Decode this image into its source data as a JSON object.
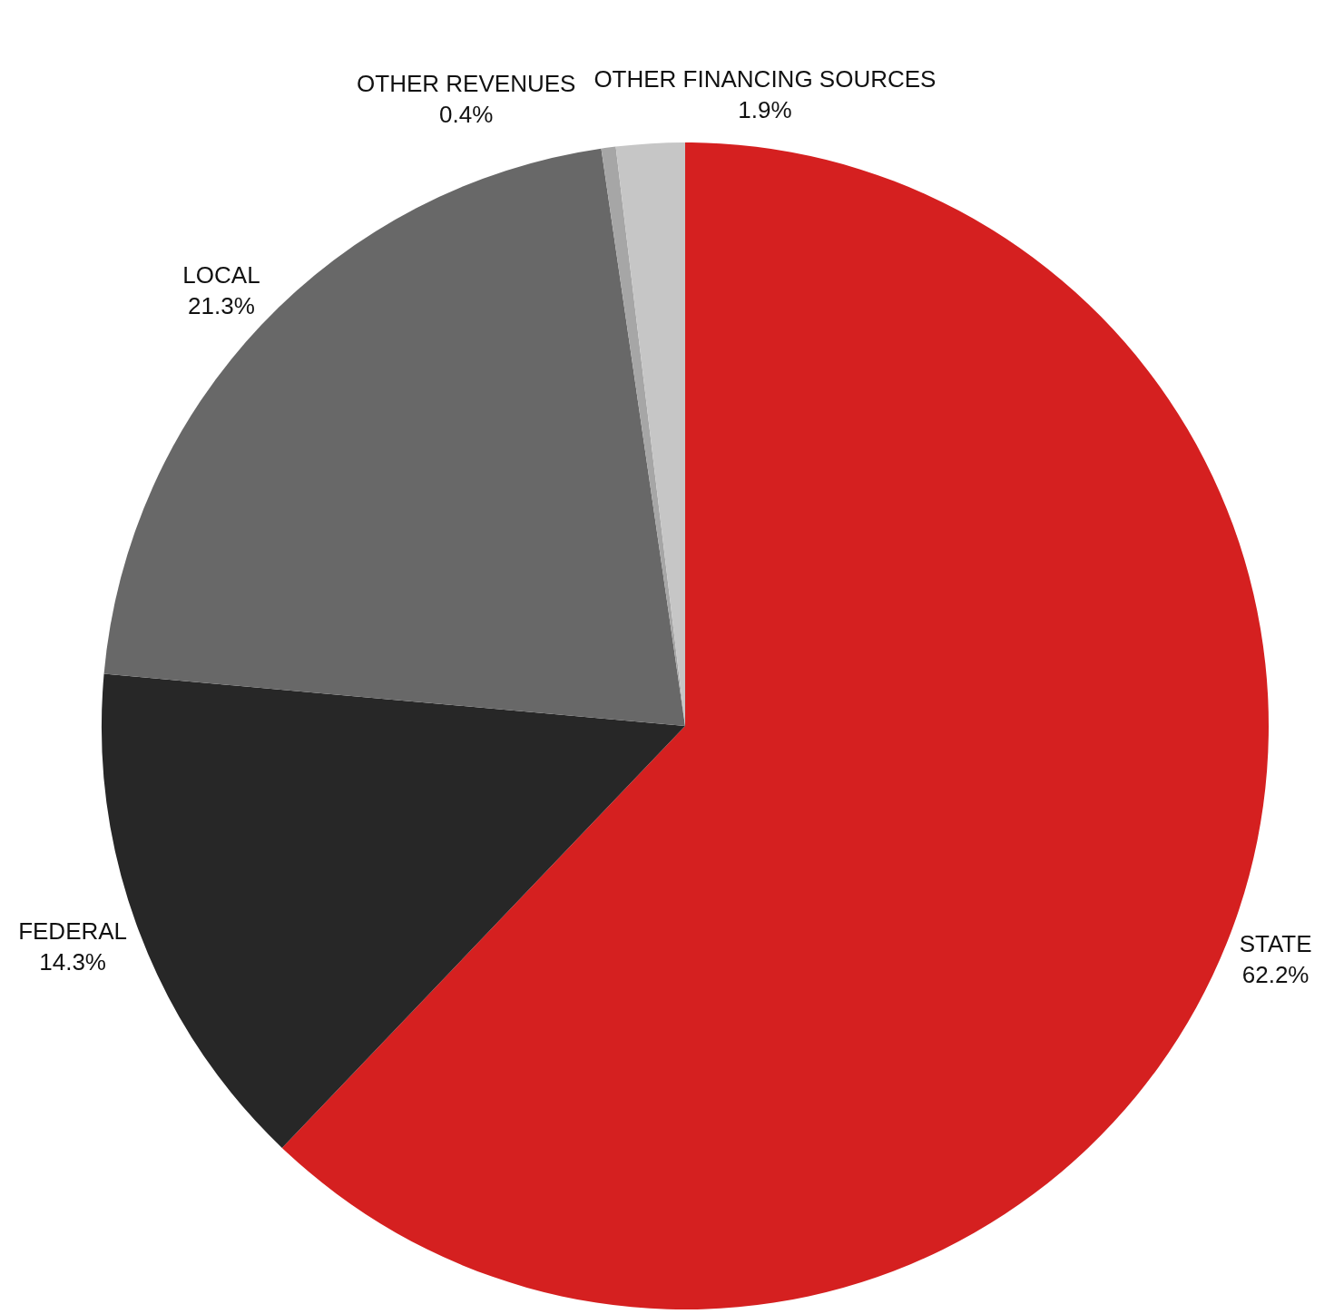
{
  "chart_data": {
    "type": "pie",
    "categories": [
      "STATE",
      "FEDERAL",
      "LOCAL",
      "OTHER REVENUES",
      "OTHER FINANCING SOURCES"
    ],
    "values": [
      62.2,
      14.3,
      21.3,
      0.4,
      1.9
    ],
    "value_labels": [
      "62.2%",
      "14.3%",
      "21.3%",
      "0.4%",
      "1.9%"
    ],
    "colors": [
      "#d52020",
      "#272727",
      "#686868",
      "#a6a6a6",
      "#c6c6c6"
    ],
    "legend": false
  }
}
